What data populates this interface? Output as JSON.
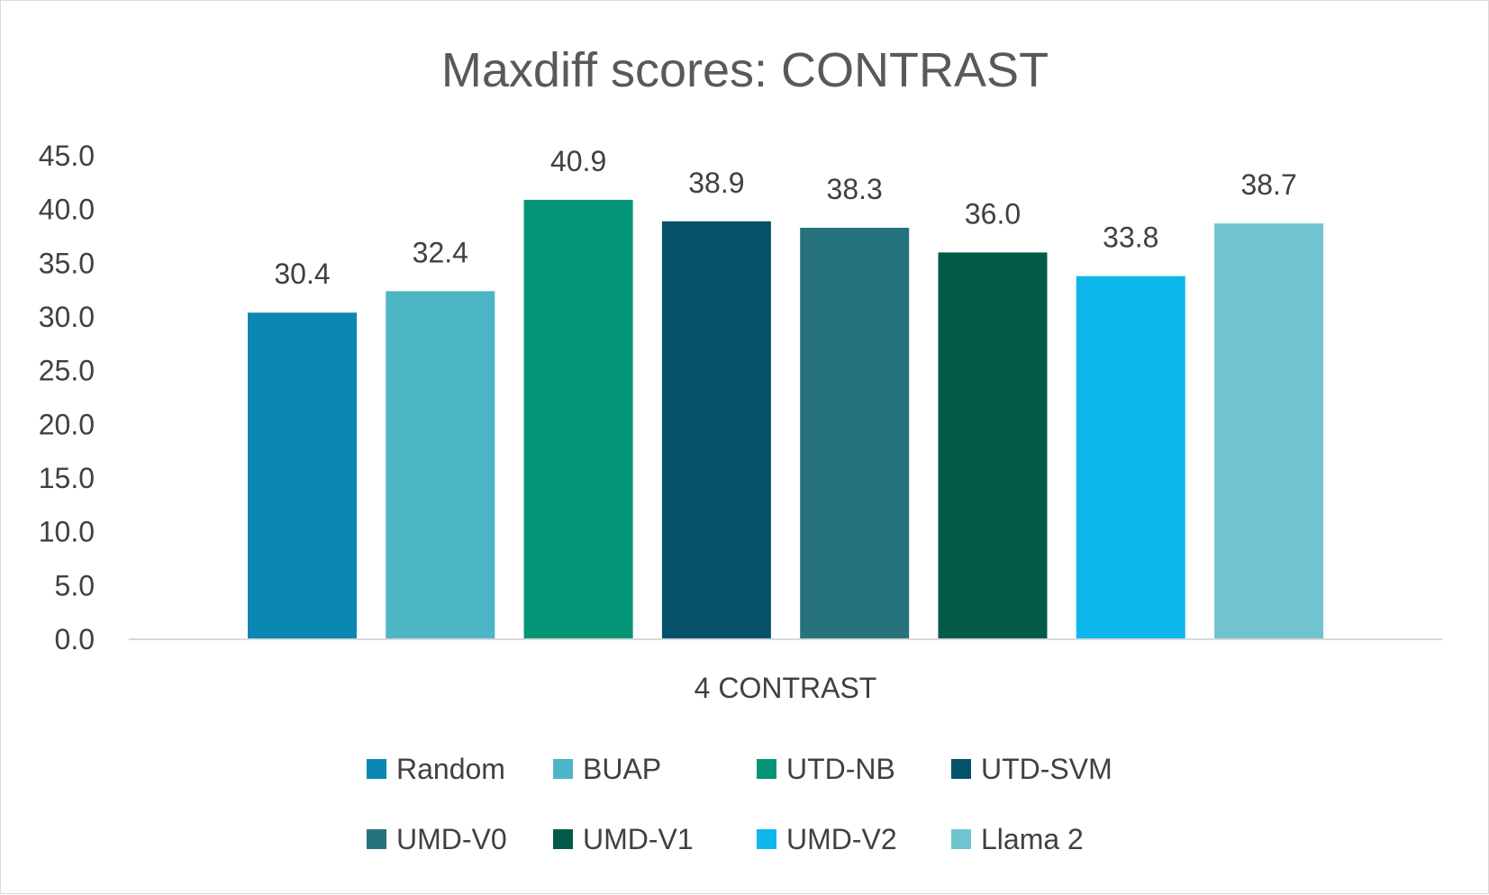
{
  "chart_data": {
    "type": "bar",
    "title": "Maxdiff scores: CONTRAST",
    "categories": [
      "4 CONTRAST"
    ],
    "series": [
      {
        "name": "Random",
        "values": [
          30.4
        ],
        "color": "#0b87b3"
      },
      {
        "name": "BUAP",
        "values": [
          32.4
        ],
        "color": "#4cb5c6"
      },
      {
        "name": "UTD-NB",
        "values": [
          40.9
        ],
        "color": "#039575"
      },
      {
        "name": "UTD-SVM",
        "values": [
          38.9
        ],
        "color": "#06516a"
      },
      {
        "name": "UMD-V0",
        "values": [
          38.3
        ],
        "color": "#27737d"
      },
      {
        "name": "UMD-V1",
        "values": [
          36.0
        ],
        "color": "#025b47"
      },
      {
        "name": "UMD-V2",
        "values": [
          33.8
        ],
        "color": "#0db7ec"
      },
      {
        "name": "Llama 2",
        "values": [
          38.7
        ],
        "color": "#70c4d0"
      }
    ],
    "yticks": [
      "0.0",
      "5.0",
      "10.0",
      "15.0",
      "20.0",
      "25.0",
      "30.0",
      "35.0",
      "40.0",
      "45.0"
    ],
    "ylim": [
      0,
      45
    ],
    "xlabel": "",
    "ylabel": "",
    "grid": false,
    "legend_position": "bottom",
    "data_labels": true
  }
}
